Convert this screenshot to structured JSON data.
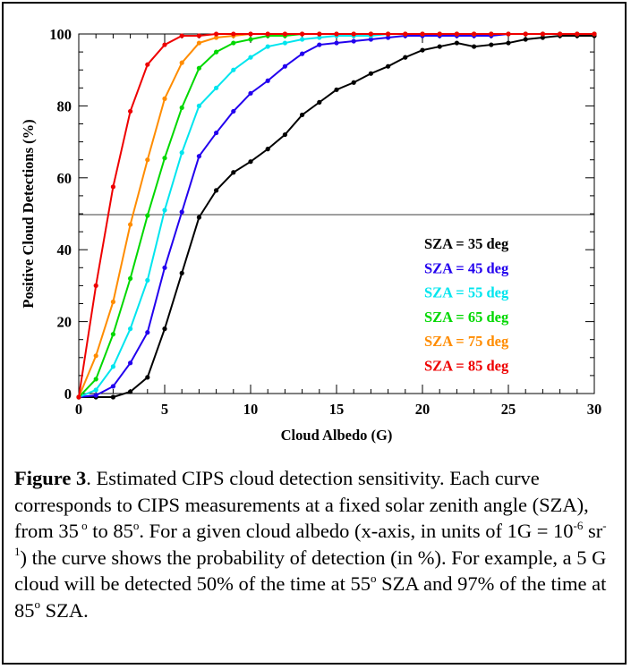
{
  "chart_data": {
    "type": "line",
    "title": "",
    "xlabel": "Cloud Albedo (G)",
    "ylabel": "Positive Cloud Detections (%)",
    "xlim": [
      0,
      30
    ],
    "ylim": [
      0,
      100
    ],
    "xticks": [
      0,
      5,
      10,
      15,
      20,
      25,
      30
    ],
    "yticks": [
      0,
      20,
      40,
      60,
      80,
      100
    ],
    "xtick_labels": [
      "0",
      "5",
      "10",
      "15",
      "20",
      "25",
      "30"
    ],
    "ytick_labels": [
      "0",
      "20",
      "40",
      "60",
      "80",
      "100"
    ],
    "reference_lines_y": [
      50,
      100
    ],
    "grid": false,
    "legend_position": "lower-right",
    "x": [
      0,
      1,
      2,
      3,
      4,
      5,
      6,
      7,
      8,
      9,
      10,
      11,
      12,
      13,
      14,
      15,
      16,
      17,
      18,
      19,
      20,
      21,
      22,
      23,
      24,
      25,
      26,
      27,
      28,
      29,
      30
    ],
    "series": [
      {
        "name": "SZA = 35 deg",
        "color": "#000000",
        "values": [
          -1,
          -1,
          -1,
          0.5,
          4.5,
          18,
          33.5,
          49,
          56.5,
          61.5,
          64.5,
          68,
          72,
          77.5,
          81,
          84.5,
          86.5,
          89,
          91,
          93.5,
          95.5,
          96.5,
          97.5,
          96.5,
          97,
          97.5,
          98.5,
          99,
          99.5,
          99.5,
          99.5
        ]
      },
      {
        "name": "SZA = 45 deg",
        "color": "#2200ee",
        "values": [
          -1,
          -0.5,
          2,
          8.5,
          17,
          35,
          50.5,
          66,
          72.5,
          78.5,
          83.5,
          87,
          91,
          94.5,
          97,
          97.5,
          98,
          98.5,
          99,
          99.5,
          99.5,
          99.5,
          99.5,
          99.5,
          99.5,
          100,
          100,
          100,
          100,
          100,
          100
        ]
      },
      {
        "name": "SZA = 55 deg",
        "color": "#00e5ee",
        "values": [
          -1,
          1,
          7.5,
          18,
          31.5,
          51,
          67,
          80,
          85,
          90,
          93.5,
          96.5,
          97.5,
          98.5,
          99,
          99.5,
          99.5,
          99.5,
          100,
          100,
          100,
          100,
          100,
          100,
          100,
          100,
          100,
          100,
          100,
          100,
          100
        ]
      },
      {
        "name": "SZA = 65 deg",
        "color": "#00d800",
        "values": [
          -1,
          4,
          16.5,
          32,
          49.5,
          65.5,
          79.5,
          90.5,
          95,
          97.5,
          98.5,
          99.5,
          99.5,
          100,
          100,
          100,
          100,
          100,
          100,
          100,
          100,
          100,
          100,
          100,
          100,
          100,
          100,
          100,
          100,
          100,
          100
        ]
      },
      {
        "name": "SZA = 75 deg",
        "color": "#ff8c00",
        "values": [
          -1,
          10.5,
          25.5,
          47,
          65,
          82,
          92,
          97.5,
          99,
          99.5,
          100,
          100,
          100,
          100,
          100,
          100,
          100,
          100,
          100,
          100,
          100,
          100,
          100,
          100,
          100,
          100,
          100,
          100,
          100,
          100,
          100
        ]
      },
      {
        "name": "SZA = 85 deg",
        "color": "#ee0000",
        "values": [
          -1,
          30,
          57.5,
          78.5,
          91.5,
          97,
          99.5,
          99.5,
          100,
          100,
          100,
          100,
          100,
          100,
          100,
          100,
          100,
          100,
          100,
          100,
          100,
          100,
          100,
          100,
          100,
          100,
          100,
          100,
          100,
          100,
          100
        ]
      }
    ]
  },
  "caption": {
    "label": "Figure 3",
    "parts": [
      ". Estimated CIPS cloud detection sensitivity. Each curve corresponds to CIPS measurements at a fixed solar zenith angle (SZA), from 35",
      " to 85",
      ". For a given cloud albedo (x-axis, in units of 1G = 10",
      " sr",
      ") the curve shows the probability of detection (in %). For example, a 5 G cloud will be detected 50% of the time at 55",
      " SZA and 97% of the time at 85",
      " SZA."
    ],
    "superscripts": [
      " o",
      "o",
      "-6",
      "-1",
      "o",
      "o"
    ]
  }
}
